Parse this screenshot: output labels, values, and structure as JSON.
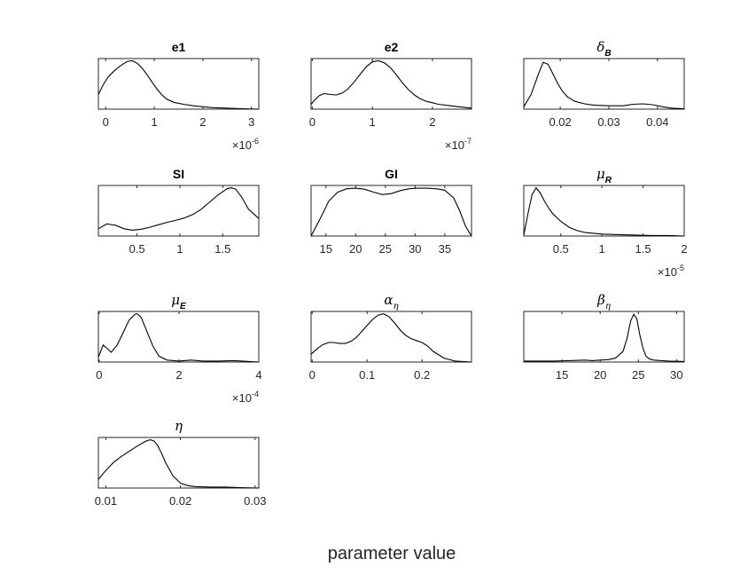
{
  "figure": {
    "xlabel": "parameter value"
  },
  "chart_data": [
    {
      "type": "line",
      "title": "e1",
      "title_subscript": "",
      "title_greek": false,
      "xlim": [
        -0.15,
        3.15
      ],
      "ticks": [
        0,
        1,
        2,
        3
      ],
      "tick_labels": [
        "0",
        "1",
        "2",
        "3"
      ],
      "exponent_label": {
        "base": "×10",
        "power": "-6"
      },
      "x": [
        -0.15,
        -0.05,
        0.05,
        0.15,
        0.25,
        0.35,
        0.45,
        0.55,
        0.65,
        0.75,
        0.85,
        0.95,
        1.05,
        1.15,
        1.25,
        1.4,
        1.6,
        1.8,
        2.0,
        2.2,
        2.5,
        2.8,
        3.15
      ],
      "y": [
        0.3,
        0.5,
        0.66,
        0.76,
        0.85,
        0.92,
        0.98,
        0.99,
        0.94,
        0.84,
        0.71,
        0.56,
        0.42,
        0.3,
        0.21,
        0.14,
        0.1,
        0.07,
        0.05,
        0.03,
        0.02,
        0.01,
        0.0
      ]
    },
    {
      "type": "line",
      "title": "e2",
      "title_subscript": "",
      "title_greek": false,
      "xlim": [
        -0.02,
        2.65
      ],
      "ticks": [
        0,
        1,
        2
      ],
      "tick_labels": [
        "0",
        "1",
        "2"
      ],
      "exponent_label": {
        "base": "×10",
        "power": "-7"
      },
      "x": [
        -0.02,
        0.05,
        0.12,
        0.2,
        0.3,
        0.4,
        0.5,
        0.6,
        0.7,
        0.8,
        0.9,
        1.0,
        1.1,
        1.2,
        1.3,
        1.4,
        1.5,
        1.6,
        1.7,
        1.8,
        1.9,
        2.0,
        2.1,
        2.3,
        2.5,
        2.65
      ],
      "y": [
        0.1,
        0.2,
        0.28,
        0.32,
        0.3,
        0.29,
        0.33,
        0.42,
        0.56,
        0.72,
        0.87,
        0.97,
        0.99,
        0.95,
        0.85,
        0.7,
        0.54,
        0.4,
        0.29,
        0.21,
        0.16,
        0.13,
        0.1,
        0.07,
        0.04,
        0.02
      ]
    },
    {
      "type": "line",
      "title": "δ",
      "title_subscript": "B",
      "title_greek": true,
      "xlim": [
        0.0125,
        0.0455
      ],
      "ticks": [
        0.02,
        0.03,
        0.04
      ],
      "tick_labels": [
        "0.02",
        "0.03",
        "0.04"
      ],
      "exponent_label": null,
      "x": [
        0.0125,
        0.014,
        0.0155,
        0.0165,
        0.0175,
        0.0185,
        0.0195,
        0.0205,
        0.0215,
        0.023,
        0.025,
        0.027,
        0.03,
        0.033,
        0.035,
        0.037,
        0.039,
        0.041,
        0.043,
        0.0455
      ],
      "y": [
        0.05,
        0.3,
        0.72,
        0.96,
        0.92,
        0.72,
        0.52,
        0.36,
        0.25,
        0.16,
        0.11,
        0.08,
        0.07,
        0.07,
        0.1,
        0.11,
        0.09,
        0.05,
        0.02,
        0.01
      ]
    },
    {
      "type": "line",
      "title": "SI",
      "title_subscript": "",
      "title_greek": false,
      "xlim": [
        0.05,
        1.92
      ],
      "ticks": [
        0.5,
        1,
        1.5
      ],
      "tick_labels": [
        "0.5",
        "1",
        "1.5"
      ],
      "exponent_label": null,
      "x": [
        0.05,
        0.15,
        0.25,
        0.35,
        0.45,
        0.55,
        0.65,
        0.75,
        0.85,
        0.95,
        1.05,
        1.15,
        1.25,
        1.35,
        1.45,
        1.55,
        1.6,
        1.65,
        1.72,
        1.8,
        1.92
      ],
      "y": [
        0.15,
        0.25,
        0.22,
        0.15,
        0.12,
        0.14,
        0.18,
        0.23,
        0.28,
        0.32,
        0.37,
        0.44,
        0.55,
        0.7,
        0.85,
        0.97,
        0.99,
        0.96,
        0.8,
        0.55,
        0.36
      ]
    },
    {
      "type": "line",
      "title": "GI",
      "title_subscript": "",
      "title_greek": false,
      "xlim": [
        12.5,
        39.5
      ],
      "ticks": [
        15,
        20,
        25,
        30,
        35
      ],
      "tick_labels": [
        "15",
        "20",
        "25",
        "30",
        "35"
      ],
      "exponent_label": null,
      "x": [
        12.5,
        14,
        15.5,
        17,
        18.5,
        20,
        21.5,
        23,
        24.5,
        26,
        27.5,
        29,
        30.5,
        32,
        33.5,
        35,
        36.5,
        37.5,
        38.5,
        39.5
      ],
      "y": [
        0.0,
        0.35,
        0.72,
        0.9,
        0.97,
        0.98,
        0.96,
        0.9,
        0.85,
        0.87,
        0.93,
        0.97,
        0.98,
        0.98,
        0.97,
        0.94,
        0.78,
        0.52,
        0.2,
        0.0
      ]
    },
    {
      "type": "line",
      "title": "μ",
      "title_subscript": "R",
      "title_greek": true,
      "xlim": [
        0.05,
        2.0
      ],
      "ticks": [
        0.5,
        1,
        1.5,
        2
      ],
      "tick_labels": [
        "0.5",
        "1",
        "1.5",
        "2"
      ],
      "exponent_label": {
        "base": "×10",
        "power": "-5"
      },
      "x": [
        0.05,
        0.1,
        0.15,
        0.2,
        0.25,
        0.3,
        0.35,
        0.4,
        0.5,
        0.6,
        0.7,
        0.8,
        1.0,
        1.2,
        1.4,
        1.6,
        1.8,
        2.0
      ],
      "y": [
        0.02,
        0.45,
        0.85,
        0.99,
        0.88,
        0.72,
        0.58,
        0.46,
        0.3,
        0.18,
        0.11,
        0.07,
        0.04,
        0.03,
        0.02,
        0.01,
        0.01,
        0.0
      ]
    },
    {
      "type": "line",
      "title": "μ",
      "title_subscript": "E",
      "title_greek": true,
      "xlim": [
        -0.02,
        4.0
      ],
      "ticks": [
        0,
        2,
        4
      ],
      "tick_labels": [
        "0",
        "2",
        "4"
      ],
      "exponent_label": {
        "base": "×10",
        "power": "-4"
      },
      "x": [
        -0.02,
        0.1,
        0.2,
        0.3,
        0.45,
        0.6,
        0.75,
        0.9,
        0.95,
        1.05,
        1.2,
        1.35,
        1.5,
        1.7,
        2.0,
        2.3,
        2.6,
        3.0,
        3.4,
        4.0
      ],
      "y": [
        0.1,
        0.35,
        0.28,
        0.2,
        0.35,
        0.6,
        0.86,
        0.98,
        0.99,
        0.92,
        0.62,
        0.32,
        0.12,
        0.04,
        0.02,
        0.04,
        0.02,
        0.02,
        0.03,
        0.0
      ]
    },
    {
      "type": "line",
      "title": "α",
      "title_subscript": "η",
      "title_greek": true,
      "xlim": [
        -0.002,
        0.29
      ],
      "ticks": [
        0,
        0.1,
        0.2
      ],
      "tick_labels": [
        "0",
        "0.1",
        "0.2"
      ],
      "exponent_label": null,
      "x": [
        -0.002,
        0.01,
        0.02,
        0.03,
        0.04,
        0.05,
        0.06,
        0.07,
        0.08,
        0.09,
        0.1,
        0.11,
        0.12,
        0.13,
        0.14,
        0.15,
        0.16,
        0.17,
        0.18,
        0.19,
        0.2,
        0.21,
        0.22,
        0.24,
        0.26,
        0.29
      ],
      "y": [
        0.16,
        0.28,
        0.36,
        0.4,
        0.4,
        0.38,
        0.38,
        0.42,
        0.5,
        0.62,
        0.75,
        0.87,
        0.96,
        0.99,
        0.93,
        0.8,
        0.66,
        0.55,
        0.48,
        0.44,
        0.4,
        0.33,
        0.22,
        0.08,
        0.02,
        0.0
      ]
    },
    {
      "type": "line",
      "title": "β",
      "title_subscript": "η",
      "title_greek": true,
      "xlim": [
        10.0,
        31.0
      ],
      "ticks": [
        15,
        20,
        25,
        30
      ],
      "tick_labels": [
        "15",
        "20",
        "25",
        "30"
      ],
      "exponent_label": null,
      "x": [
        10.0,
        12,
        14,
        16,
        18,
        19,
        20,
        21,
        22,
        23,
        23.5,
        24,
        24.4,
        24.8,
        25.2,
        25.6,
        26,
        26.5,
        27,
        28,
        29,
        31
      ],
      "y": [
        0.02,
        0.02,
        0.02,
        0.03,
        0.04,
        0.03,
        0.04,
        0.05,
        0.08,
        0.22,
        0.48,
        0.85,
        0.98,
        0.88,
        0.55,
        0.28,
        0.12,
        0.06,
        0.04,
        0.03,
        0.02,
        0.01
      ]
    },
    {
      "type": "line",
      "title": "η",
      "title_subscript": "",
      "title_greek": true,
      "xlim": [
        0.009,
        0.0305
      ],
      "ticks": [
        0.01,
        0.02,
        0.03
      ],
      "tick_labels": [
        "0.01",
        "0.02",
        "0.03"
      ],
      "exponent_label": null,
      "x": [
        0.009,
        0.01,
        0.011,
        0.012,
        0.013,
        0.014,
        0.015,
        0.0155,
        0.016,
        0.0165,
        0.017,
        0.0175,
        0.018,
        0.019,
        0.02,
        0.021,
        0.022,
        0.024,
        0.026,
        0.028,
        0.0305
      ],
      "y": [
        0.18,
        0.36,
        0.52,
        0.64,
        0.74,
        0.84,
        0.93,
        0.97,
        0.99,
        0.96,
        0.86,
        0.7,
        0.52,
        0.25,
        0.1,
        0.05,
        0.03,
        0.02,
        0.02,
        0.01,
        0.0
      ]
    }
  ]
}
